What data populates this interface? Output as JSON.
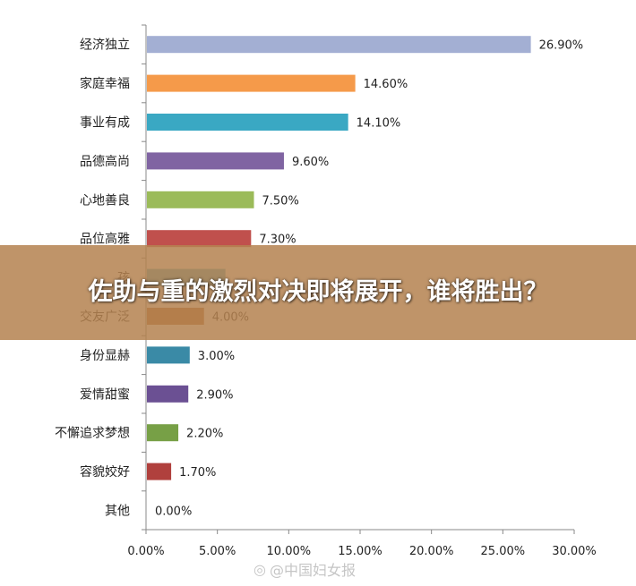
{
  "chart_data": {
    "type": "bar",
    "orientation": "horizontal",
    "categories": [
      "经济独立",
      "家庭幸福",
      "事业有成",
      "品德高尚",
      "心地善良",
      "品位高雅",
      "孩",
      "交友广泛",
      "身份显赫",
      "爱情甜蜜",
      "不懈追求梦想",
      "容貌姣好",
      "其他"
    ],
    "values": [
      26.9,
      14.6,
      14.1,
      9.6,
      7.5,
      7.3,
      5.5,
      4.0,
      3.0,
      2.9,
      2.2,
      1.7,
      0.0
    ],
    "value_labels": [
      "26.90%",
      "14.60%",
      "14.10%",
      "9.60%",
      "7.50%",
      "7.30%",
      "",
      "4.00%",
      "3.00%",
      "2.90%",
      "2.20%",
      "1.70%",
      "0.00%"
    ],
    "colors": [
      "#a3afd3",
      "#f59a4a",
      "#3aa8c3",
      "#8064a2",
      "#9bbb59",
      "#c0504d",
      "#4bacc6",
      "#b0652a",
      "#3a8aa6",
      "#6b5093",
      "#77a046",
      "#b0403d",
      "#888888"
    ],
    "xlim": [
      0,
      30
    ],
    "xticks": [
      "0.00%",
      "5.00%",
      "10.00%",
      "15.00%",
      "20.00%",
      "25.00%",
      "30.00%"
    ],
    "grid": false
  },
  "overlay": {
    "headline": "佐助与重的激烈对决即将展开，谁将胜出？"
  },
  "watermark": {
    "icon": "weibo-icon",
    "text": "@中国妇女报"
  }
}
